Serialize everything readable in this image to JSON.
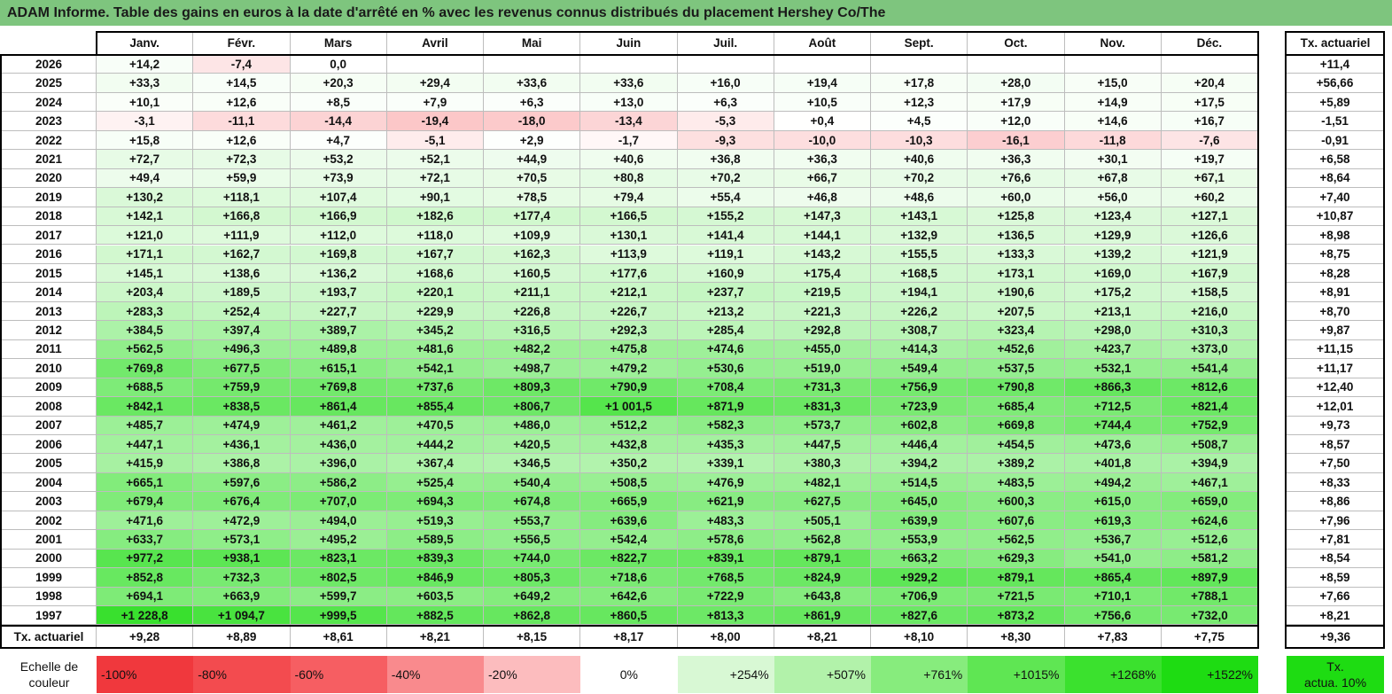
{
  "title": "ADAM Informe. Table des gains en euros à la date d'arrêté en % avec les revenus connus distribués du placement Hershey Co/The",
  "months": [
    "Janv.",
    "Févr.",
    "Mars",
    "Avril",
    "Mai",
    "Juin",
    "Juil.",
    "Août",
    "Sept.",
    "Oct.",
    "Nov.",
    "Déc."
  ],
  "rate_header": "Tx. actuariel",
  "rows": [
    {
      "year": "2026",
      "values": [
        "+14,2",
        "-7,4",
        "0,0",
        "",
        "",
        "",
        "",
        "",
        "",
        "",
        "",
        ""
      ],
      "rate": "+11,4"
    },
    {
      "year": "2025",
      "values": [
        "+33,3",
        "+14,5",
        "+20,3",
        "+29,4",
        "+33,6",
        "+33,6",
        "+16,0",
        "+19,4",
        "+17,8",
        "+28,0",
        "+15,0",
        "+20,4"
      ],
      "rate": "+56,66"
    },
    {
      "year": "2024",
      "values": [
        "+10,1",
        "+12,6",
        "+8,5",
        "+7,9",
        "+6,3",
        "+13,0",
        "+6,3",
        "+10,5",
        "+12,3",
        "+17,9",
        "+14,9",
        "+17,5"
      ],
      "rate": "+5,89"
    },
    {
      "year": "2023",
      "values": [
        "-3,1",
        "-11,1",
        "-14,4",
        "-19,4",
        "-18,0",
        "-13,4",
        "-5,3",
        "+0,4",
        "+4,5",
        "+12,0",
        "+14,6",
        "+16,7"
      ],
      "rate": "-1,51"
    },
    {
      "year": "2022",
      "values": [
        "+15,8",
        "+12,6",
        "+4,7",
        "-5,1",
        "+2,9",
        "-1,7",
        "-9,3",
        "-10,0",
        "-10,3",
        "-16,1",
        "-11,8",
        "-7,6"
      ],
      "rate": "-0,91"
    },
    {
      "year": "2021",
      "values": [
        "+72,7",
        "+72,3",
        "+53,2",
        "+52,1",
        "+44,9",
        "+40,6",
        "+36,8",
        "+36,3",
        "+40,6",
        "+36,3",
        "+30,1",
        "+19,7"
      ],
      "rate": "+6,58"
    },
    {
      "year": "2020",
      "values": [
        "+49,4",
        "+59,9",
        "+73,9",
        "+72,1",
        "+70,5",
        "+80,8",
        "+70,2",
        "+66,7",
        "+70,2",
        "+76,6",
        "+67,8",
        "+67,1"
      ],
      "rate": "+8,64"
    },
    {
      "year": "2019",
      "values": [
        "+130,2",
        "+118,1",
        "+107,4",
        "+90,1",
        "+78,5",
        "+79,4",
        "+55,4",
        "+46,8",
        "+48,6",
        "+60,0",
        "+56,0",
        "+60,2"
      ],
      "rate": "+7,40"
    },
    {
      "year": "2018",
      "values": [
        "+142,1",
        "+166,8",
        "+166,9",
        "+182,6",
        "+177,4",
        "+166,5",
        "+155,2",
        "+147,3",
        "+143,1",
        "+125,8",
        "+123,4",
        "+127,1"
      ],
      "rate": "+10,87"
    },
    {
      "year": "2017",
      "values": [
        "+121,0",
        "+111,9",
        "+112,0",
        "+118,0",
        "+109,9",
        "+130,1",
        "+141,4",
        "+144,1",
        "+132,9",
        "+136,5",
        "+129,9",
        "+126,6"
      ],
      "rate": "+8,98"
    },
    {
      "year": "2016",
      "values": [
        "+171,1",
        "+162,7",
        "+169,8",
        "+167,7",
        "+162,3",
        "+113,9",
        "+119,1",
        "+143,2",
        "+155,5",
        "+133,3",
        "+139,2",
        "+121,9"
      ],
      "rate": "+8,75"
    },
    {
      "year": "2015",
      "values": [
        "+145,1",
        "+138,6",
        "+136,2",
        "+168,6",
        "+160,5",
        "+177,6",
        "+160,9",
        "+175,4",
        "+168,5",
        "+173,1",
        "+169,0",
        "+167,9"
      ],
      "rate": "+8,28"
    },
    {
      "year": "2014",
      "values": [
        "+203,4",
        "+189,5",
        "+193,7",
        "+220,1",
        "+211,1",
        "+212,1",
        "+237,7",
        "+219,5",
        "+194,1",
        "+190,6",
        "+175,2",
        "+158,5"
      ],
      "rate": "+8,91"
    },
    {
      "year": "2013",
      "values": [
        "+283,3",
        "+252,4",
        "+227,7",
        "+229,9",
        "+226,8",
        "+226,7",
        "+213,2",
        "+221,3",
        "+226,2",
        "+207,5",
        "+213,1",
        "+216,0"
      ],
      "rate": "+8,70"
    },
    {
      "year": "2012",
      "values": [
        "+384,5",
        "+397,4",
        "+389,7",
        "+345,2",
        "+316,5",
        "+292,3",
        "+285,4",
        "+292,8",
        "+308,7",
        "+323,4",
        "+298,0",
        "+310,3"
      ],
      "rate": "+9,87"
    },
    {
      "year": "2011",
      "values": [
        "+562,5",
        "+496,3",
        "+489,8",
        "+481,6",
        "+482,2",
        "+475,8",
        "+474,6",
        "+455,0",
        "+414,3",
        "+452,6",
        "+423,7",
        "+373,0"
      ],
      "rate": "+11,15"
    },
    {
      "year": "2010",
      "values": [
        "+769,8",
        "+677,5",
        "+615,1",
        "+542,1",
        "+498,7",
        "+479,2",
        "+530,6",
        "+519,0",
        "+549,4",
        "+537,5",
        "+532,1",
        "+541,4"
      ],
      "rate": "+11,17"
    },
    {
      "year": "2009",
      "values": [
        "+688,5",
        "+759,9",
        "+769,8",
        "+737,6",
        "+809,3",
        "+790,9",
        "+708,4",
        "+731,3",
        "+756,9",
        "+790,8",
        "+866,3",
        "+812,6"
      ],
      "rate": "+12,40"
    },
    {
      "year": "2008",
      "values": [
        "+842,1",
        "+838,5",
        "+861,4",
        "+855,4",
        "+806,7",
        "+1 001,5",
        "+871,9",
        "+831,3",
        "+723,9",
        "+685,4",
        "+712,5",
        "+821,4"
      ],
      "rate": "+12,01"
    },
    {
      "year": "2007",
      "values": [
        "+485,7",
        "+474,9",
        "+461,2",
        "+470,5",
        "+486,0",
        "+512,2",
        "+582,3",
        "+573,7",
        "+602,8",
        "+669,8",
        "+744,4",
        "+752,9"
      ],
      "rate": "+9,73"
    },
    {
      "year": "2006",
      "values": [
        "+447,1",
        "+436,1",
        "+436,0",
        "+444,2",
        "+420,5",
        "+432,8",
        "+435,3",
        "+447,5",
        "+446,4",
        "+454,5",
        "+473,6",
        "+508,7"
      ],
      "rate": "+8,57"
    },
    {
      "year": "2005",
      "values": [
        "+415,9",
        "+386,8",
        "+396,0",
        "+367,4",
        "+346,5",
        "+350,2",
        "+339,1",
        "+380,3",
        "+394,2",
        "+389,2",
        "+401,8",
        "+394,9"
      ],
      "rate": "+7,50"
    },
    {
      "year": "2004",
      "values": [
        "+665,1",
        "+597,6",
        "+586,2",
        "+525,4",
        "+540,4",
        "+508,5",
        "+476,9",
        "+482,1",
        "+514,5",
        "+483,5",
        "+494,2",
        "+467,1"
      ],
      "rate": "+8,33"
    },
    {
      "year": "2003",
      "values": [
        "+679,4",
        "+676,4",
        "+707,0",
        "+694,3",
        "+674,8",
        "+665,9",
        "+621,9",
        "+627,5",
        "+645,0",
        "+600,3",
        "+615,0",
        "+659,0"
      ],
      "rate": "+8,86"
    },
    {
      "year": "2002",
      "values": [
        "+471,6",
        "+472,9",
        "+494,0",
        "+519,3",
        "+553,7",
        "+639,6",
        "+483,3",
        "+505,1",
        "+639,9",
        "+607,6",
        "+619,3",
        "+624,6"
      ],
      "rate": "+7,96"
    },
    {
      "year": "2001",
      "values": [
        "+633,7",
        "+573,1",
        "+495,2",
        "+589,5",
        "+556,5",
        "+542,4",
        "+578,6",
        "+562,8",
        "+553,9",
        "+562,5",
        "+536,7",
        "+512,6"
      ],
      "rate": "+7,81"
    },
    {
      "year": "2000",
      "values": [
        "+977,2",
        "+938,1",
        "+823,1",
        "+839,3",
        "+744,0",
        "+822,7",
        "+839,1",
        "+879,1",
        "+663,2",
        "+629,3",
        "+541,0",
        "+581,2"
      ],
      "rate": "+8,54"
    },
    {
      "year": "1999",
      "values": [
        "+852,8",
        "+732,3",
        "+802,5",
        "+846,9",
        "+805,3",
        "+718,6",
        "+768,5",
        "+824,9",
        "+929,2",
        "+879,1",
        "+865,4",
        "+897,9"
      ],
      "rate": "+8,59"
    },
    {
      "year": "1998",
      "values": [
        "+694,1",
        "+663,9",
        "+599,7",
        "+603,5",
        "+649,2",
        "+642,6",
        "+722,9",
        "+643,8",
        "+706,9",
        "+721,5",
        "+710,1",
        "+788,1"
      ],
      "rate": "+7,66"
    },
    {
      "year": "1997",
      "values": [
        "+1 228,8",
        "+1 094,7",
        "+999,5",
        "+882,5",
        "+862,8",
        "+860,5",
        "+813,3",
        "+861,9",
        "+827,6",
        "+873,2",
        "+756,6",
        "+732,0"
      ],
      "rate": "+8,21"
    }
  ],
  "footer": {
    "label": "Tx. actuariel",
    "values": [
      "+9,28",
      "+8,89",
      "+8,61",
      "+8,21",
      "+8,15",
      "+8,17",
      "+8,00",
      "+8,21",
      "+8,10",
      "+8,30",
      "+7,83",
      "+7,75"
    ],
    "rate": "+9,36"
  },
  "scale": {
    "label_line1": "Echelle de",
    "label_line2": "couleur",
    "items": [
      {
        "label": "-100%",
        "color": "#f0383d"
      },
      {
        "label": "-80%",
        "color": "#f34b4f"
      },
      {
        "label": "-60%",
        "color": "#f65e62"
      },
      {
        "label": "-40%",
        "color": "#f98a8d"
      },
      {
        "label": "-20%",
        "color": "#fcbcbe"
      },
      {
        "label": "0%",
        "color": "#ffffff"
      },
      {
        "label": "+254%",
        "color": "#d8f8d4"
      },
      {
        "label": "+507%",
        "color": "#b2f2aa"
      },
      {
        "label": "+761%",
        "color": "#87ec7d"
      },
      {
        "label": "+1015%",
        "color": "#5fe653"
      },
      {
        "label": "+1268%",
        "color": "#3be12e"
      },
      {
        "label": "+1522%",
        "color": "#1edc12"
      }
    ],
    "rate_label_line1": "Tx.",
    "rate_label_line2": "actua. 10%",
    "rate_color": "#1edc12"
  },
  "colors": {
    "title_bg": "#7ec57e",
    "positive_max": "#1edc12",
    "negative_max": "#f0383d"
  }
}
